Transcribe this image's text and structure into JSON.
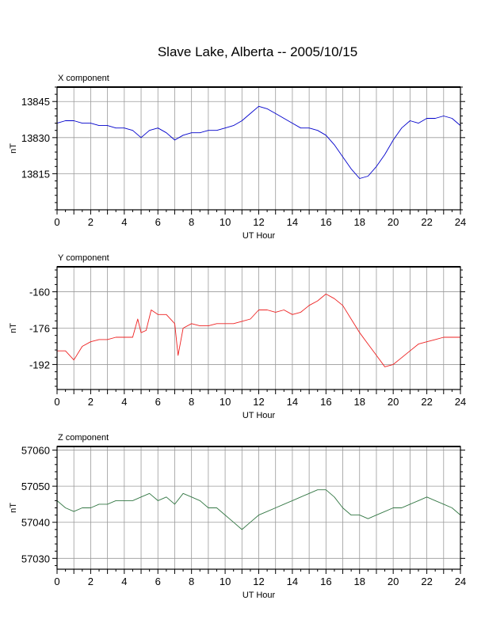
{
  "title": "Slave Lake, Alberta -- 2005/10/15",
  "chart_data": [
    {
      "type": "line",
      "title": "X component",
      "xlabel": "UT Hour",
      "ylabel": "nT",
      "xlim": [
        0,
        24
      ],
      "ylim": [
        13800,
        13851
      ],
      "xticks": [
        0,
        2,
        4,
        6,
        8,
        10,
        12,
        14,
        16,
        18,
        20,
        22,
        24
      ],
      "yticks": [
        13815,
        13830,
        13845
      ],
      "grid": true,
      "series": [
        {
          "color": "#0000cc",
          "x": [
            0,
            0.5,
            1,
            1.5,
            2,
            2.5,
            3,
            3.5,
            4,
            4.5,
            5,
            5.5,
            6,
            6.5,
            7,
            7.5,
            8,
            8.5,
            9,
            9.5,
            10,
            10.5,
            11,
            11.5,
            12,
            12.5,
            13,
            13.5,
            14,
            14.5,
            15,
            15.5,
            16,
            16.5,
            17,
            17.5,
            18,
            18.5,
            19,
            19.5,
            20,
            20.5,
            21,
            21.5,
            22,
            22.5,
            23,
            23.5,
            24
          ],
          "y": [
            13836,
            13837,
            13837,
            13836,
            13836,
            13835,
            13835,
            13834,
            13834,
            13833,
            13830,
            13833,
            13834,
            13832,
            13829,
            13831,
            13832,
            13832,
            13833,
            13833,
            13834,
            13835,
            13837,
            13840,
            13843,
            13842,
            13840,
            13838,
            13836,
            13834,
            13834,
            13833,
            13831,
            13827,
            13822,
            13817,
            13813,
            13814,
            13818,
            13823,
            13829,
            13834,
            13837,
            13836,
            13838,
            13838,
            13839,
            13838,
            13835
          ]
        }
      ]
    },
    {
      "type": "line",
      "title": "Y component",
      "xlabel": "UT Hour",
      "ylabel": "nT",
      "xlim": [
        0,
        24
      ],
      "ylim": [
        -203,
        -149
      ],
      "xticks": [
        0,
        2,
        4,
        6,
        8,
        10,
        12,
        14,
        16,
        18,
        20,
        22,
        24
      ],
      "yticks": [
        -192,
        -176,
        -160
      ],
      "grid": true,
      "series": [
        {
          "color": "#ee2222",
          "x": [
            0,
            0.5,
            1,
            1.5,
            2,
            2.5,
            3,
            3.5,
            4,
            4.5,
            4.8,
            5,
            5.3,
            5.6,
            6,
            6.5,
            7,
            7.2,
            7.5,
            8,
            8.5,
            9,
            9.5,
            10,
            10.5,
            11,
            11.5,
            12,
            12.5,
            13,
            13.5,
            14,
            14.5,
            15,
            15.5,
            16,
            16.5,
            17,
            17.5,
            18,
            18.5,
            19,
            19.5,
            20,
            20.5,
            21,
            21.5,
            22,
            22.5,
            23,
            23.5,
            24
          ],
          "y": [
            -186,
            -186,
            -190,
            -184,
            -182,
            -181,
            -181,
            -180,
            -180,
            -180,
            -172,
            -178,
            -177,
            -168,
            -170,
            -170,
            -174,
            -188,
            -176,
            -174,
            -175,
            -175,
            -174,
            -174,
            -174,
            -173,
            -172,
            -168,
            -168,
            -169,
            -168,
            -170,
            -169,
            -166,
            -164,
            -161,
            -163,
            -166,
            -172,
            -178,
            -183,
            -188,
            -193,
            -192,
            -189,
            -186,
            -183,
            -182,
            -181,
            -180,
            -180,
            -180
          ]
        }
      ]
    },
    {
      "type": "line",
      "title": "Z component",
      "xlabel": "UT Hour",
      "ylabel": "nT",
      "xlim": [
        0,
        24
      ],
      "ylim": [
        57027,
        57061
      ],
      "xticks": [
        0,
        2,
        4,
        6,
        8,
        10,
        12,
        14,
        16,
        18,
        20,
        22,
        24
      ],
      "yticks": [
        57030,
        57040,
        57050,
        57060
      ],
      "grid": true,
      "series": [
        {
          "color": "#337744",
          "x": [
            0,
            0.5,
            1,
            1.5,
            2,
            2.5,
            3,
            3.5,
            4,
            4.5,
            5,
            5.5,
            6,
            6.5,
            7,
            7.5,
            8,
            8.5,
            9,
            9.5,
            10,
            10.5,
            11,
            11.5,
            12,
            12.5,
            13,
            13.5,
            14,
            14.5,
            15,
            15.5,
            16,
            16.5,
            17,
            17.5,
            18,
            18.5,
            19,
            19.5,
            20,
            20.5,
            21,
            21.5,
            22,
            22.5,
            23,
            23.5,
            24
          ],
          "y": [
            57046,
            57044,
            57043,
            57044,
            57044,
            57045,
            57045,
            57046,
            57046,
            57046,
            57047,
            57048,
            57046,
            57047,
            57045,
            57048,
            57047,
            57046,
            57044,
            57044,
            57042,
            57040,
            57038,
            57040,
            57042,
            57043,
            57044,
            57045,
            57046,
            57047,
            57048,
            57049,
            57049,
            57047,
            57044,
            57042,
            57042,
            57041,
            57042,
            57043,
            57044,
            57044,
            57045,
            57046,
            57047,
            57046,
            57045,
            57044,
            57042
          ]
        }
      ]
    }
  ]
}
